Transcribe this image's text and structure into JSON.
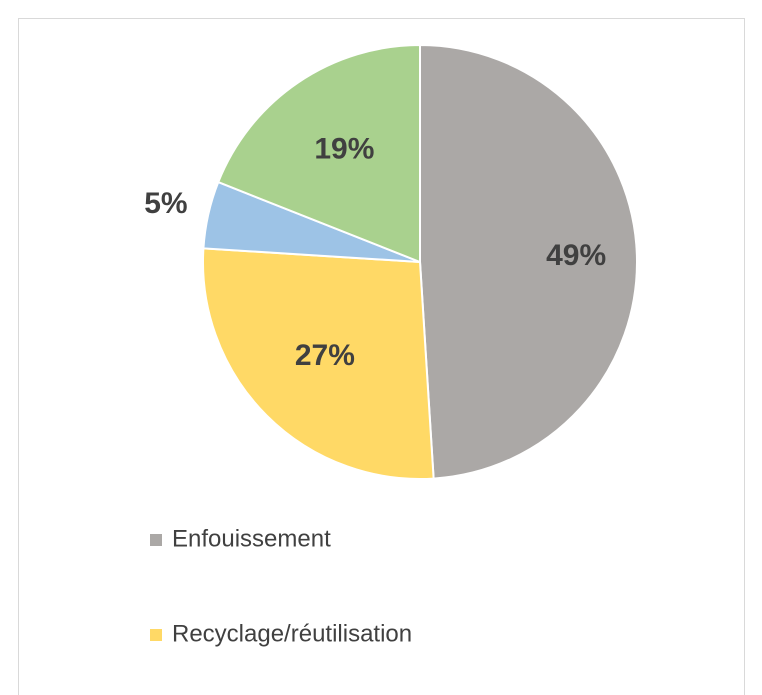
{
  "chart_data": {
    "type": "pie",
    "categories": [
      "Enfouissement",
      "Recyclage/réutilisation",
      null,
      null
    ],
    "values": [
      49,
      27,
      5,
      19
    ],
    "value_labels": [
      "49%",
      "27%",
      "5%",
      "19%"
    ],
    "colors": [
      "#aba8a6",
      "#ffd966",
      "#9dc3e6",
      "#a9d18e"
    ]
  }
}
